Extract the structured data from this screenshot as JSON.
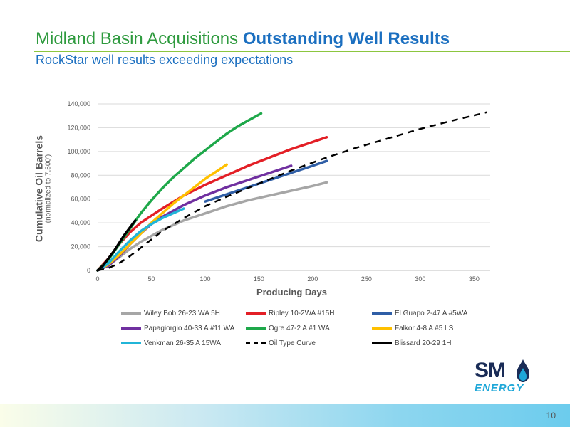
{
  "header": {
    "title_part1": "Midland Basin Acquisitions ",
    "title_part2": "Outstanding Well Results",
    "subtitle": "RockStar well results exceeding expectations"
  },
  "chart_data": {
    "type": "line",
    "xlabel": "Producing Days",
    "ylabel": "Cumulative Oil Barrels",
    "ylabel_sub": "(normalized to 7,500')",
    "xlim": [
      0,
      365
    ],
    "ylim": [
      0,
      140000
    ],
    "xticks": [
      0,
      50,
      100,
      150,
      200,
      250,
      300,
      350
    ],
    "yticks": [
      0,
      20000,
      40000,
      60000,
      80000,
      100000,
      120000,
      140000
    ],
    "ytick_labels": [
      "0",
      "20,000",
      "40,000",
      "60,000",
      "80,000",
      "100,000",
      "120,000",
      "140,000"
    ],
    "grid": "horizontal",
    "legend_position": "bottom",
    "series": [
      {
        "name": "Wiley Bob 26-23 WA 5H",
        "color": "#a6a6a6",
        "style": "solid",
        "x": [
          0,
          10,
          20,
          30,
          40,
          50,
          60,
          70,
          80,
          100,
          120,
          140,
          160,
          180,
          200,
          213
        ],
        "y": [
          0,
          4000,
          11000,
          18000,
          24000,
          29000,
          34000,
          38000,
          42000,
          48000,
          54000,
          59000,
          63000,
          67000,
          71000,
          74000
        ]
      },
      {
        "name": "Ripley 10-2WA #15H",
        "color": "#e31f26",
        "style": "solid",
        "x": [
          0,
          10,
          20,
          30,
          40,
          50,
          60,
          80,
          100,
          120,
          140,
          160,
          180,
          200,
          213
        ],
        "y": [
          0,
          10000,
          22000,
          32000,
          40000,
          46000,
          52000,
          63000,
          72000,
          80000,
          88000,
          95000,
          102000,
          108000,
          112000
        ]
      },
      {
        "name": "El Guapo 2-47 A #5WA",
        "color": "#2f5ea6",
        "style": "solid",
        "x": [
          100,
          120,
          140,
          160,
          180,
          200,
          213
        ],
        "y": [
          58000,
          64000,
          70000,
          76000,
          82000,
          88000,
          92000
        ]
      },
      {
        "name": "Papagiorgio 40-33 A #11 WA",
        "color": "#7030a0",
        "style": "solid",
        "x": [
          0,
          10,
          20,
          30,
          40,
          50,
          60,
          80,
          100,
          120,
          140,
          160,
          180
        ],
        "y": [
          0,
          4000,
          12000,
          22000,
          31000,
          39000,
          45000,
          55000,
          63000,
          70000,
          76000,
          82000,
          88000
        ]
      },
      {
        "name": "Ogre 47-2 A #1 WA",
        "color": "#1ea84a",
        "style": "solid",
        "x": [
          0,
          10,
          20,
          30,
          40,
          50,
          60,
          70,
          80,
          90,
          100,
          110,
          120,
          130,
          140,
          152
        ],
        "y": [
          0,
          9000,
          22000,
          35000,
          48000,
          59000,
          69000,
          78000,
          86000,
          94000,
          101000,
          108000,
          115000,
          121000,
          126000,
          132000
        ]
      },
      {
        "name": "Falkor 4-8 A #5 LS",
        "color": "#ffc000",
        "style": "solid",
        "x": [
          0,
          10,
          20,
          30,
          40,
          50,
          60,
          70,
          80,
          90,
          100,
          110,
          120
        ],
        "y": [
          0,
          5000,
          13000,
          22000,
          31000,
          40000,
          48000,
          56000,
          63000,
          70000,
          77000,
          83000,
          89000
        ]
      },
      {
        "name": "Venkman 26-35 A 15WA",
        "color": "#21b5d8",
        "style": "solid",
        "x": [
          0,
          10,
          20,
          30,
          40,
          50,
          60,
          70,
          80
        ],
        "y": [
          0,
          6000,
          16000,
          25000,
          33000,
          39000,
          44000,
          48000,
          52000
        ]
      },
      {
        "name": "Oil Type Curve",
        "color": "#000000",
        "style": "dashed",
        "x": [
          0,
          10,
          20,
          30,
          40,
          50,
          60,
          80,
          100,
          120,
          150,
          180,
          210,
          240,
          270,
          300,
          330,
          362
        ],
        "y": [
          0,
          2000,
          6000,
          12000,
          19000,
          26000,
          33000,
          44000,
          54000,
          62000,
          73000,
          84000,
          94000,
          103000,
          111000,
          119000,
          126000,
          133000
        ]
      },
      {
        "name": "Blissard 20-29 1H",
        "color": "#000000",
        "style": "solid",
        "x": [
          0,
          5,
          10,
          15,
          20,
          25,
          30,
          35
        ],
        "y": [
          0,
          4000,
          10000,
          16000,
          23000,
          30000,
          36000,
          42000
        ]
      }
    ]
  },
  "logo": {
    "sm": "SM",
    "energy": "ENERGY"
  },
  "footer": {
    "page_number": "10"
  }
}
